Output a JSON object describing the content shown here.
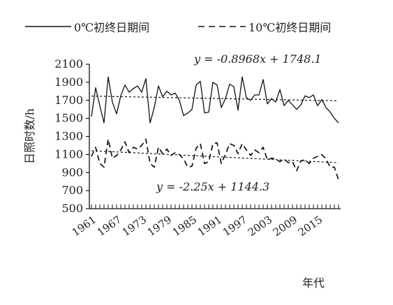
{
  "chart_data": {
    "type": "line",
    "xlabel": "年代",
    "ylabel": "日照时数/h",
    "ylim": [
      500,
      2100
    ],
    "yticks": [
      500,
      700,
      900,
      1100,
      1300,
      1500,
      1700,
      1900,
      2100
    ],
    "xticks": [
      "1961",
      "1967",
      "1973",
      "1979",
      "1985",
      "1991",
      "1997",
      "2003",
      "2009",
      "2015"
    ],
    "x_start": 1961,
    "x_end": 2020,
    "legend_position": "top",
    "series": [
      {
        "name": "0℃初终日期间",
        "style": "solid",
        "color": "#111111",
        "values": [
          1520,
          1840,
          1640,
          1450,
          1960,
          1680,
          1550,
          1750,
          1870,
          1790,
          1830,
          1860,
          1790,
          1940,
          1450,
          1620,
          1860,
          1740,
          1800,
          1760,
          1780,
          1700,
          1530,
          1560,
          1600,
          1870,
          1910,
          1560,
          1570,
          1900,
          1870,
          1620,
          1720,
          1880,
          1850,
          1590,
          1960,
          1730,
          1700,
          1760,
          1760,
          1930,
          1660,
          1720,
          1680,
          1820,
          1640,
          1700,
          1650,
          1600,
          1650,
          1750,
          1730,
          1760,
          1640,
          1710,
          1620,
          1570,
          1500,
          1450
        ]
      },
      {
        "name": "10℃初终日期间",
        "style": "dashed",
        "color": "#111111",
        "values": [
          1080,
          1180,
          1000,
          960,
          1270,
          1060,
          1090,
          1150,
          1240,
          1120,
          1180,
          1160,
          1200,
          1270,
          1000,
          960,
          1180,
          1110,
          1160,
          1090,
          1120,
          1100,
          1050,
          960,
          970,
          1170,
          1220,
          1000,
          1020,
          1220,
          1230,
          1000,
          1100,
          1220,
          1200,
          1110,
          1220,
          1150,
          1090,
          1150,
          1120,
          1180,
          1040,
          1060,
          1050,
          1020,
          1050,
          1010,
          1020,
          920,
          1030,
          1040,
          1000,
          1060,
          1080,
          1100,
          1050,
          960,
          960,
          820
        ]
      }
    ],
    "trendlines": [
      {
        "series": "0℃初终日期间",
        "equation": "y = -0.8968x + 1748.1",
        "slope": -0.8968,
        "intercept": 1748.1
      },
      {
        "series": "10℃初终日期间",
        "equation": "y = -2.25x + 1144.3",
        "slope": -2.25,
        "intercept": 1144.3
      }
    ]
  }
}
